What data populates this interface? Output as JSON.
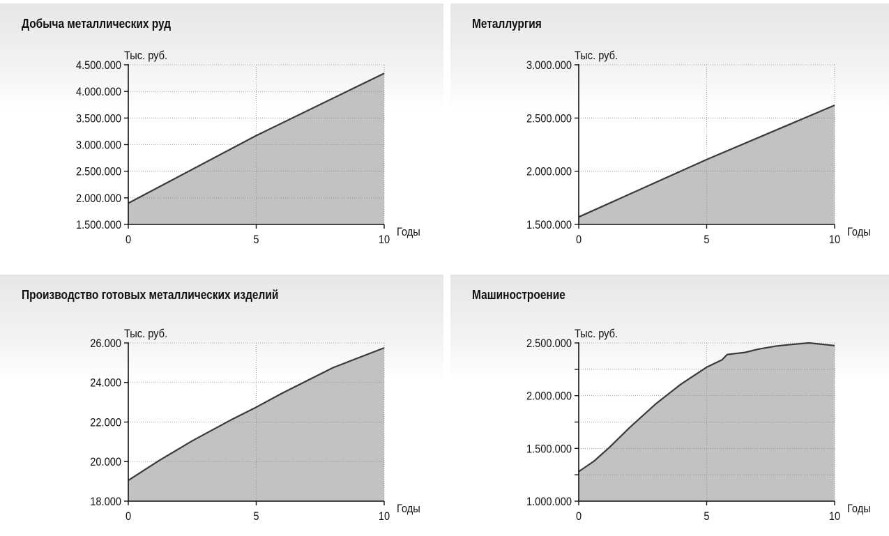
{
  "charts": [
    {
      "title": "Добыча металлических руд",
      "chart_id": "mining"
    },
    {
      "title": "Металлургия",
      "chart_id": "metallurgy"
    },
    {
      "title": "Производство готовых металлических изделий",
      "chart_id": "metal-products"
    },
    {
      "title": "Машиностроение",
      "chart_id": "machinery"
    }
  ],
  "chart_data": [
    {
      "type": "area",
      "title": "Добыча металлических руд",
      "ylabel": "Тыс. руб.",
      "xlabel": "Годы",
      "xlim": [
        0,
        10
      ],
      "ylim": [
        1500000,
        4500000
      ],
      "xticks": [
        "0",
        "5",
        "10"
      ],
      "yticks": [
        "1.500.000",
        "2.000.000",
        "2.500.000",
        "3.000.000",
        "3.500.000",
        "4.000.000",
        "4.500.000"
      ],
      "ytick_values": [
        1500000,
        2000000,
        2500000,
        3000000,
        3500000,
        4000000,
        4500000
      ],
      "grid": true,
      "x": [
        0,
        5,
        10
      ],
      "y": [
        1900000,
        3170000,
        4340000
      ],
      "fill_color": "#c2c2c2",
      "line_color": "#3a3a3a"
    },
    {
      "type": "area",
      "title": "Металлургия",
      "ylabel": "Тыс. руб.",
      "xlabel": "Годы",
      "xlim": [
        0,
        10
      ],
      "ylim": [
        1500000,
        3000000
      ],
      "xticks": [
        "0",
        "5",
        "10"
      ],
      "yticks": [
        "1.500.000",
        "2.000.000",
        "2.500.000",
        "3.000.000"
      ],
      "ytick_values": [
        1500000,
        2000000,
        2500000,
        3000000
      ],
      "grid": true,
      "x": [
        0,
        5,
        10
      ],
      "y": [
        1570000,
        2110000,
        2620000
      ],
      "fill_color": "#c2c2c2",
      "line_color": "#3a3a3a"
    },
    {
      "type": "area",
      "title": "Производство готовых металлических изделий",
      "ylabel": "Тыс. руб.",
      "xlabel": "Годы",
      "xlim": [
        0,
        10
      ],
      "ylim": [
        18000,
        26000
      ],
      "xticks": [
        "0",
        "5",
        "10"
      ],
      "yticks": [
        "18.000",
        "20.000",
        "22.000",
        "24.000",
        "26.000"
      ],
      "ytick_values": [
        18000,
        20000,
        22000,
        24000,
        26000
      ],
      "grid": true,
      "x": [
        0,
        1.2,
        2.5,
        4,
        5,
        6,
        7,
        8,
        9,
        10
      ],
      "y": [
        19050,
        20050,
        21050,
        22100,
        22750,
        23450,
        24100,
        24750,
        25250,
        25750
      ],
      "fill_color": "#c2c2c2",
      "line_color": "#3a3a3a"
    },
    {
      "type": "area",
      "title": "Машиностроение",
      "ylabel": "Тыс. руб.",
      "xlabel": "Годы",
      "xlim": [
        0,
        10
      ],
      "ylim": [
        1000000,
        2500000
      ],
      "xticks": [
        "0",
        "5",
        "10"
      ],
      "yticks": [
        "1.000.000",
        "1.500.000",
        "2.000.000",
        "2.500.000"
      ],
      "ytick_values": [
        1000000,
        1500000,
        2000000,
        2500000
      ],
      "yminor_ticks": [
        1250000,
        1750000,
        2250000
      ],
      "grid": true,
      "x": [
        0,
        0.6,
        1.2,
        2,
        3,
        4,
        5,
        5.6,
        5.8,
        6.5,
        7,
        7.7,
        8.3,
        9,
        10
      ],
      "y": [
        1280000,
        1380000,
        1510000,
        1700000,
        1920000,
        2110000,
        2270000,
        2340000,
        2390000,
        2410000,
        2440000,
        2470000,
        2485000,
        2500000,
        2475000
      ],
      "fill_color": "#c2c2c2",
      "line_color": "#3a3a3a"
    }
  ]
}
